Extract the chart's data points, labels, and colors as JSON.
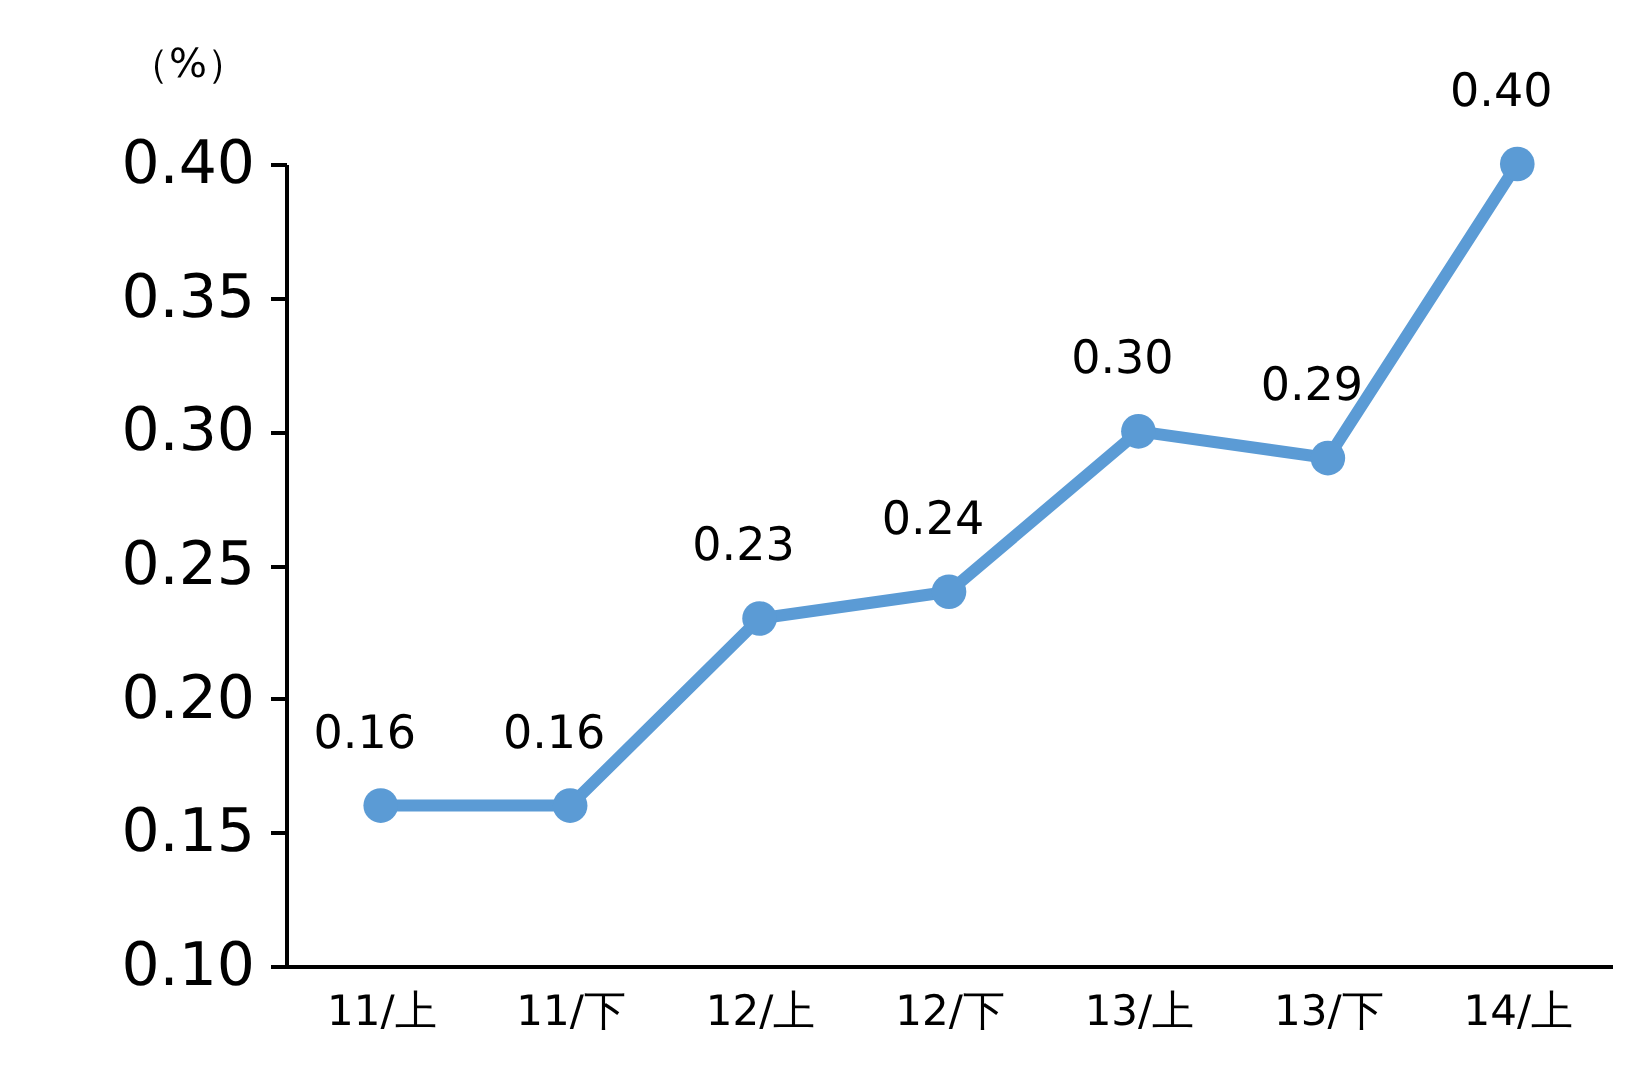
{
  "chart_data": {
    "type": "line",
    "ylabel": "（%）",
    "categories": [
      "11/上",
      "11/下",
      "12/上",
      "12/下",
      "13/上",
      "13/下",
      "14/上"
    ],
    "series": [
      {
        "color": "#5b9bd5",
        "values": [
          0.16,
          0.16,
          0.23,
          0.24,
          0.3,
          0.29,
          0.4
        ],
        "value_labels": [
          "0.16",
          "0.16",
          "0.23",
          "0.24",
          "0.30",
          "0.29",
          "0.40"
        ]
      }
    ],
    "ylim": [
      0.1,
      0.4
    ],
    "yticks": [
      {
        "value": 0.1,
        "label": "0.10"
      },
      {
        "value": 0.15,
        "label": "0.15"
      },
      {
        "value": 0.2,
        "label": "0.20"
      },
      {
        "value": 0.25,
        "label": "0.25"
      },
      {
        "value": 0.3,
        "label": "0.30"
      },
      {
        "value": 0.35,
        "label": "0.35"
      },
      {
        "value": 0.4,
        "label": "0.40"
      }
    ],
    "grid": false,
    "legend": false,
    "marker": "circle",
    "line_style": "solid"
  }
}
